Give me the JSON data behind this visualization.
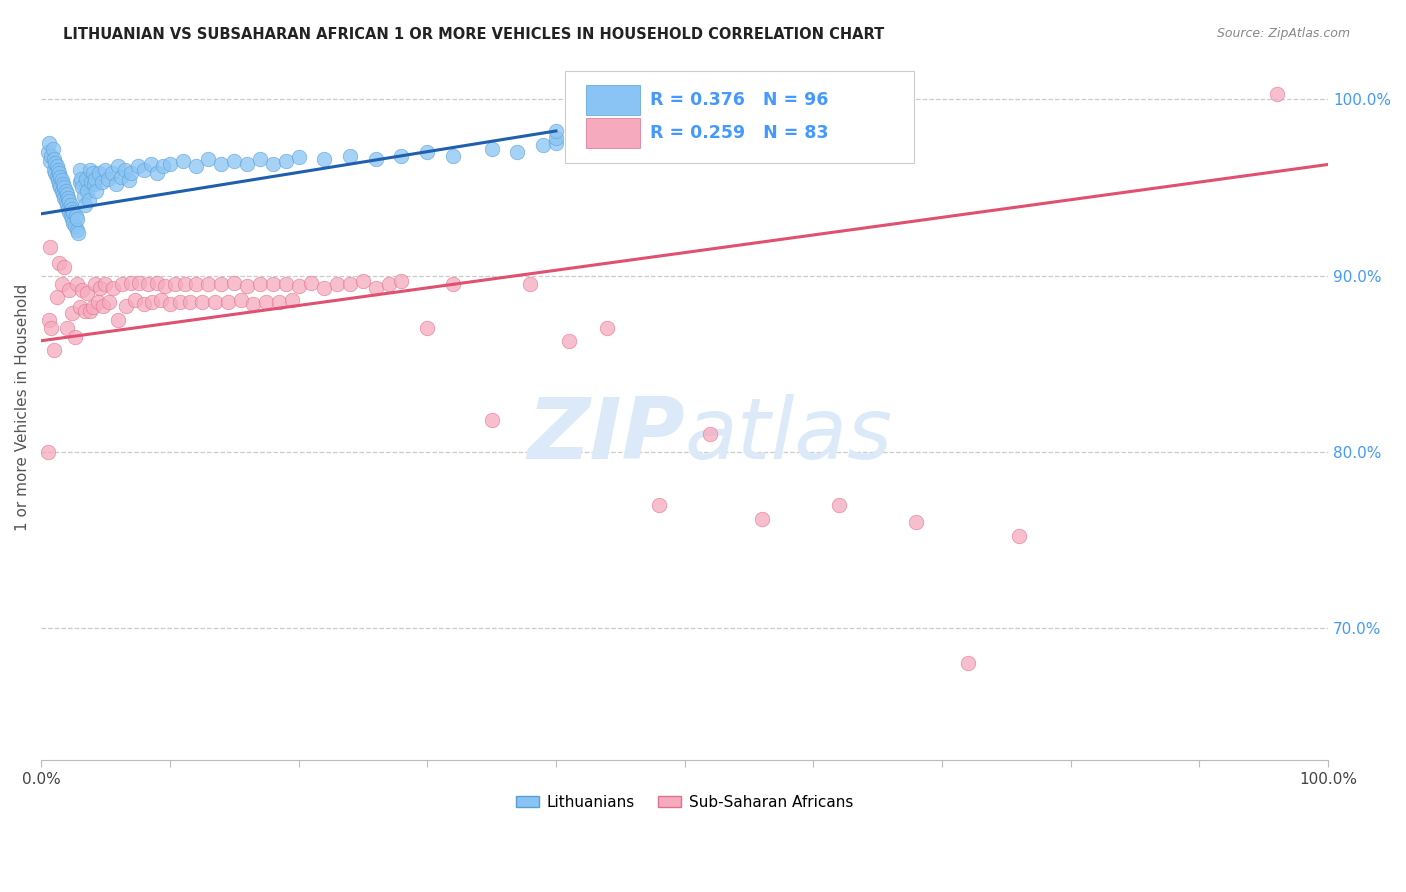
{
  "title": "LITHUANIAN VS SUBSAHARAN AFRICAN 1 OR MORE VEHICLES IN HOUSEHOLD CORRELATION CHART",
  "source": "Source: ZipAtlas.com",
  "ylabel": "1 or more Vehicles in Household",
  "ytick_labels": [
    "70.0%",
    "80.0%",
    "90.0%",
    "100.0%"
  ],
  "ytick_values": [
    0.7,
    0.8,
    0.9,
    1.0
  ],
  "xmin": 0.0,
  "xmax": 1.0,
  "ymin": 0.625,
  "ymax": 1.025,
  "blue_R": 0.376,
  "blue_N": 96,
  "pink_R": 0.259,
  "pink_N": 83,
  "blue_color": "#89C4F4",
  "blue_edge_color": "#5A9FD4",
  "blue_line_color": "#1F5FAD",
  "pink_color": "#F5AABD",
  "pink_edge_color": "#E07090",
  "pink_line_color": "#E05070",
  "legend_label_blue": "Lithuanians",
  "legend_label_pink": "Sub-Saharan Africans",
  "right_tick_color": "#4499FF",
  "watermark_color": "#DCE9F8",
  "blue_line_x0": 0.0,
  "blue_line_y0": 0.935,
  "blue_line_x1": 0.4,
  "blue_line_y1": 0.982,
  "pink_line_x0": 0.0,
  "pink_line_y0": 0.863,
  "pink_line_x1": 1.0,
  "pink_line_y1": 0.963,
  "blue_dots_x": [
    0.005,
    0.006,
    0.007,
    0.008,
    0.009,
    0.01,
    0.01,
    0.011,
    0.011,
    0.012,
    0.012,
    0.013,
    0.013,
    0.014,
    0.014,
    0.015,
    0.015,
    0.016,
    0.016,
    0.017,
    0.017,
    0.018,
    0.018,
    0.019,
    0.019,
    0.02,
    0.02,
    0.021,
    0.021,
    0.022,
    0.022,
    0.023,
    0.023,
    0.024,
    0.024,
    0.025,
    0.025,
    0.026,
    0.027,
    0.028,
    0.028,
    0.029,
    0.03,
    0.03,
    0.031,
    0.032,
    0.033,
    0.034,
    0.035,
    0.036,
    0.037,
    0.038,
    0.039,
    0.04,
    0.041,
    0.042,
    0.043,
    0.045,
    0.047,
    0.05,
    0.052,
    0.055,
    0.058,
    0.06,
    0.062,
    0.065,
    0.068,
    0.07,
    0.075,
    0.08,
    0.085,
    0.09,
    0.095,
    0.1,
    0.11,
    0.12,
    0.13,
    0.14,
    0.15,
    0.16,
    0.17,
    0.18,
    0.19,
    0.2,
    0.22,
    0.24,
    0.26,
    0.28,
    0.3,
    0.32,
    0.35,
    0.37,
    0.39,
    0.4,
    0.4,
    0.4
  ],
  "blue_dots_y": [
    0.97,
    0.975,
    0.965,
    0.968,
    0.972,
    0.96,
    0.966,
    0.958,
    0.964,
    0.956,
    0.962,
    0.954,
    0.96,
    0.952,
    0.958,
    0.95,
    0.956,
    0.948,
    0.954,
    0.946,
    0.952,
    0.944,
    0.95,
    0.942,
    0.948,
    0.94,
    0.946,
    0.938,
    0.944,
    0.936,
    0.942,
    0.934,
    0.94,
    0.932,
    0.938,
    0.93,
    0.936,
    0.928,
    0.934,
    0.926,
    0.932,
    0.924,
    0.953,
    0.96,
    0.955,
    0.95,
    0.945,
    0.94,
    0.955,
    0.948,
    0.943,
    0.96,
    0.953,
    0.958,
    0.952,
    0.955,
    0.948,
    0.958,
    0.953,
    0.96,
    0.955,
    0.958,
    0.952,
    0.962,
    0.956,
    0.96,
    0.954,
    0.958,
    0.962,
    0.96,
    0.963,
    0.958,
    0.962,
    0.963,
    0.965,
    0.962,
    0.966,
    0.963,
    0.965,
    0.963,
    0.966,
    0.963,
    0.965,
    0.967,
    0.966,
    0.968,
    0.966,
    0.968,
    0.97,
    0.968,
    0.972,
    0.97,
    0.974,
    0.975,
    0.978,
    0.982
  ],
  "pink_dots_x": [
    0.005,
    0.006,
    0.007,
    0.008,
    0.01,
    0.012,
    0.014,
    0.016,
    0.018,
    0.02,
    0.022,
    0.024,
    0.026,
    0.028,
    0.03,
    0.032,
    0.034,
    0.036,
    0.038,
    0.04,
    0.042,
    0.044,
    0.046,
    0.048,
    0.05,
    0.053,
    0.056,
    0.06,
    0.063,
    0.066,
    0.07,
    0.073,
    0.076,
    0.08,
    0.083,
    0.086,
    0.09,
    0.093,
    0.096,
    0.1,
    0.104,
    0.108,
    0.112,
    0.116,
    0.12,
    0.125,
    0.13,
    0.135,
    0.14,
    0.145,
    0.15,
    0.155,
    0.16,
    0.165,
    0.17,
    0.175,
    0.18,
    0.185,
    0.19,
    0.195,
    0.2,
    0.21,
    0.22,
    0.23,
    0.24,
    0.25,
    0.26,
    0.27,
    0.28,
    0.3,
    0.32,
    0.35,
    0.38,
    0.41,
    0.44,
    0.48,
    0.52,
    0.56,
    0.62,
    0.68,
    0.72,
    0.76,
    0.96
  ],
  "pink_dots_y": [
    0.8,
    0.875,
    0.916,
    0.87,
    0.858,
    0.888,
    0.907,
    0.895,
    0.905,
    0.87,
    0.892,
    0.879,
    0.865,
    0.895,
    0.882,
    0.892,
    0.88,
    0.89,
    0.88,
    0.882,
    0.895,
    0.885,
    0.893,
    0.883,
    0.895,
    0.885,
    0.893,
    0.875,
    0.895,
    0.883,
    0.896,
    0.886,
    0.896,
    0.884,
    0.895,
    0.885,
    0.896,
    0.886,
    0.894,
    0.884,
    0.895,
    0.885,
    0.895,
    0.885,
    0.895,
    0.885,
    0.895,
    0.885,
    0.895,
    0.885,
    0.896,
    0.886,
    0.894,
    0.884,
    0.895,
    0.885,
    0.895,
    0.885,
    0.895,
    0.886,
    0.894,
    0.896,
    0.893,
    0.895,
    0.895,
    0.897,
    0.893,
    0.895,
    0.897,
    0.87,
    0.895,
    0.818,
    0.895,
    0.863,
    0.87,
    0.77,
    0.81,
    0.762,
    0.77,
    0.76,
    0.68,
    0.752,
    1.003
  ]
}
